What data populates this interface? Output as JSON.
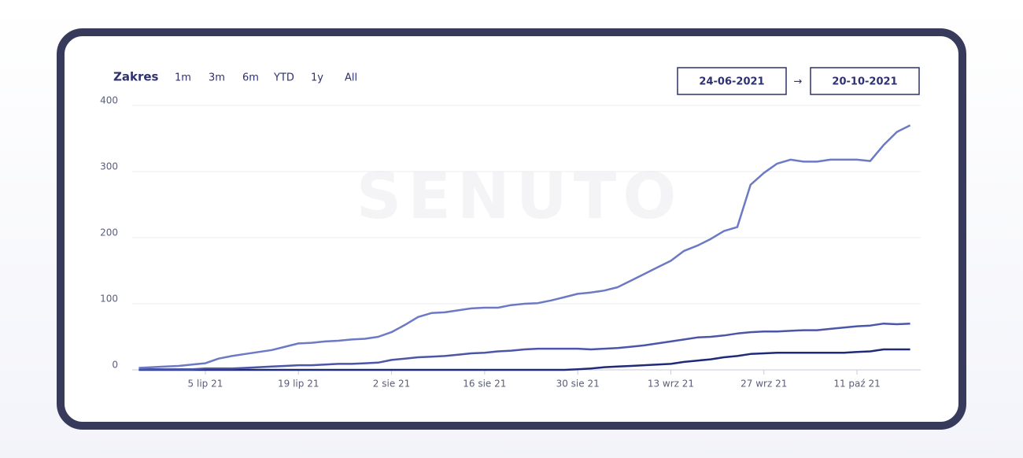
{
  "range_label": "Zakres",
  "range_options": [
    "1m",
    "3m",
    "6m",
    "YTD",
    "1y",
    "All"
  ],
  "date_from": "24-06-2021",
  "date_arrow": "→",
  "date_to": "20-10-2021",
  "watermark": "SENUTO",
  "chart_data": {
    "type": "line",
    "categories": [
      null,
      null,
      null,
      null,
      null,
      "5 lip 21",
      null,
      null,
      null,
      null,
      null,
      null,
      "19 lip 21",
      null,
      null,
      null,
      null,
      null,
      null,
      "2 sie 21",
      null,
      null,
      null,
      null,
      null,
      null,
      "16 sie 21",
      null,
      null,
      null,
      null,
      null,
      null,
      "30 sie 21",
      null,
      null,
      null,
      null,
      null,
      null,
      "13 wrz 21",
      null,
      null,
      null,
      null,
      null,
      null,
      "27 wrz 21",
      null,
      null,
      null,
      null,
      null,
      null,
      "11 paź 21",
      null,
      null,
      null,
      null
    ],
    "series": [
      {
        "color": "#6c79c4",
        "values": [
          3,
          4,
          5,
          6,
          8,
          10,
          17,
          21,
          24,
          27,
          30,
          35,
          40,
          41,
          43,
          44,
          46,
          47,
          50,
          57,
          68,
          80,
          86,
          87,
          90,
          93,
          94,
          94,
          98,
          100,
          101,
          105,
          110,
          115,
          117,
          120,
          125,
          135,
          145,
          155,
          165,
          180,
          188,
          198,
          210,
          216,
          280,
          298,
          312,
          318,
          315,
          315,
          318,
          318,
          318,
          316,
          340,
          360,
          370
        ]
      },
      {
        "color": "#4b56a8",
        "values": [
          1,
          1,
          1,
          1,
          1,
          2,
          2,
          2,
          3,
          4,
          5,
          6,
          7,
          7,
          8,
          9,
          9,
          10,
          11,
          15,
          17,
          19,
          20,
          21,
          23,
          25,
          26,
          28,
          29,
          31,
          32,
          32,
          32,
          32,
          31,
          32,
          33,
          35,
          37,
          40,
          43,
          46,
          49,
          50,
          52,
          55,
          57,
          58,
          58,
          59,
          60,
          60,
          62,
          64,
          66,
          67,
          70,
          69,
          70
        ]
      },
      {
        "color": "#1f2a78",
        "values": [
          0,
          0,
          0,
          0,
          0,
          0,
          0,
          0,
          0,
          0,
          0,
          0,
          0,
          0,
          0,
          0,
          0,
          0,
          0,
          0,
          0,
          0,
          0,
          0,
          0,
          0,
          0,
          0,
          0,
          0,
          0,
          0,
          0,
          1,
          2,
          4,
          5,
          6,
          7,
          8,
          9,
          12,
          14,
          16,
          19,
          21,
          24,
          25,
          26,
          26,
          26,
          26,
          26,
          26,
          27,
          28,
          31,
          31,
          31
        ]
      }
    ],
    "ylim": [
      0,
      400
    ],
    "yticks": [
      0,
      100,
      200,
      300,
      400
    ],
    "grid": true
  }
}
